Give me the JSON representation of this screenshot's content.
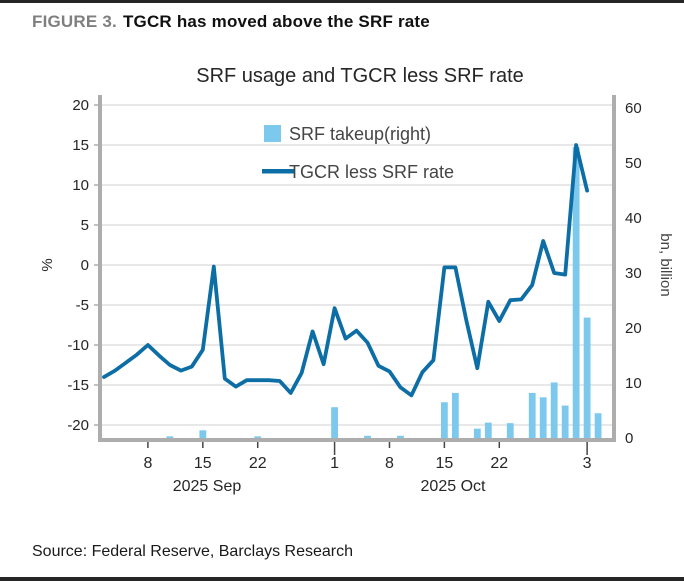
{
  "header": {
    "figure_label": "FIGURE 3.",
    "title": "TGCR has moved above the SRF rate"
  },
  "source_line": "Source: Federal Reserve, Barclays Research",
  "colors": {
    "bar": "#7CC9ED",
    "line": "#0D6EA6",
    "grid": "#DBDBDB",
    "spine": "#ADADAD",
    "tick_text": "#262626",
    "legend_text": "#454545"
  },
  "chart_data": {
    "type": "bar+line",
    "title": "SRF usage and TGCR less SRF rate",
    "left_axis": {
      "label": "%",
      "ticks": [
        20,
        15,
        10,
        5,
        0,
        -5,
        -10,
        -15,
        -20
      ],
      "range": [
        -21.6,
        21.4
      ],
      "gridlines": true
    },
    "right_axis": {
      "label": "bn, billion",
      "ticks": [
        60,
        50,
        40,
        30,
        20,
        10,
        0
      ],
      "range": [
        0,
        62.4
      ]
    },
    "x_axis": {
      "month_labels": [
        "2025 Sep",
        "2025 Oct"
      ],
      "ticks": [
        {
          "i": 4,
          "label": "8",
          "major": false
        },
        {
          "i": 9,
          "label": "15",
          "major": false
        },
        {
          "i": 14,
          "label": "22",
          "major": false
        },
        {
          "i": 21,
          "label": "1",
          "major": true
        },
        {
          "i": 26,
          "label": "8",
          "major": false
        },
        {
          "i": 31,
          "label": "15",
          "major": false
        },
        {
          "i": 36,
          "label": "22",
          "major": false
        },
        {
          "i": 44,
          "label": "3",
          "major": true
        }
      ]
    },
    "legend": [
      {
        "label": "SRF takeup(right)",
        "type": "bar"
      },
      {
        "label": "TGCR less SRF rate",
        "type": "line"
      }
    ],
    "dates": [
      "Sep 2",
      "Sep 3",
      "Sep 4",
      "Sep 5",
      "Sep 8",
      "Sep 9",
      "Sep 10",
      "Sep 11",
      "Sep 12",
      "Sep 15",
      "Sep 16",
      "Sep 17",
      "Sep 18",
      "Sep 19",
      "Sep 22",
      "Sep 23",
      "Sep 24",
      "Sep 25",
      "Sep 26",
      "Sep 29",
      "Sep 30",
      "Oct 1",
      "Oct 2",
      "Oct 3",
      "Oct 6",
      "Oct 7",
      "Oct 8",
      "Oct 9",
      "Oct 10",
      "Oct 13",
      "Oct 14",
      "Oct 15",
      "Oct 16",
      "Oct 17",
      "Oct 20",
      "Oct 21",
      "Oct 22",
      "Oct 23",
      "Oct 24",
      "Oct 27",
      "Oct 28",
      "Oct 29",
      "Oct 30",
      "Oct 31",
      "Nov 3",
      "Nov 4"
    ],
    "series": [
      {
        "name": "TGCR less SRF rate",
        "axis": "left",
        "type": "line",
        "values": [
          -14,
          -13.2,
          -12.2,
          -11.2,
          -10,
          -11.3,
          -12.5,
          -13.2,
          -12.7,
          -10.6,
          -0.2,
          -14.2,
          -15.2,
          -14.4,
          -14.4,
          -14.4,
          -14.5,
          -16,
          -13.5,
          -8.3,
          -12.4,
          -5.4,
          -9.2,
          -8.2,
          -9.7,
          -12.6,
          -13.3,
          -15.3,
          -16.3,
          -13.4,
          -11.9,
          -0.3,
          -0.3,
          -6.9,
          -12.9,
          -4.6,
          -7,
          -4.4,
          -4.3,
          -2.5,
          3,
          -1,
          -1.2,
          15,
          9.3,
          null
        ]
      },
      {
        "name": "SRF takeup(right)",
        "axis": "right",
        "type": "bar",
        "values": [
          0,
          0,
          0,
          0,
          0,
          0,
          0.3,
          0,
          0,
          1.4,
          0,
          0,
          0,
          0,
          0.3,
          0,
          0,
          0,
          0,
          0,
          0,
          5.6,
          0,
          0,
          0.4,
          0,
          0,
          0.4,
          0,
          0,
          0,
          6.5,
          8.2,
          0,
          1.7,
          2.8,
          0,
          2.7,
          0,
          8.2,
          7.4,
          10.1,
          5.9,
          52.9,
          21.9,
          4.5
        ]
      }
    ]
  }
}
